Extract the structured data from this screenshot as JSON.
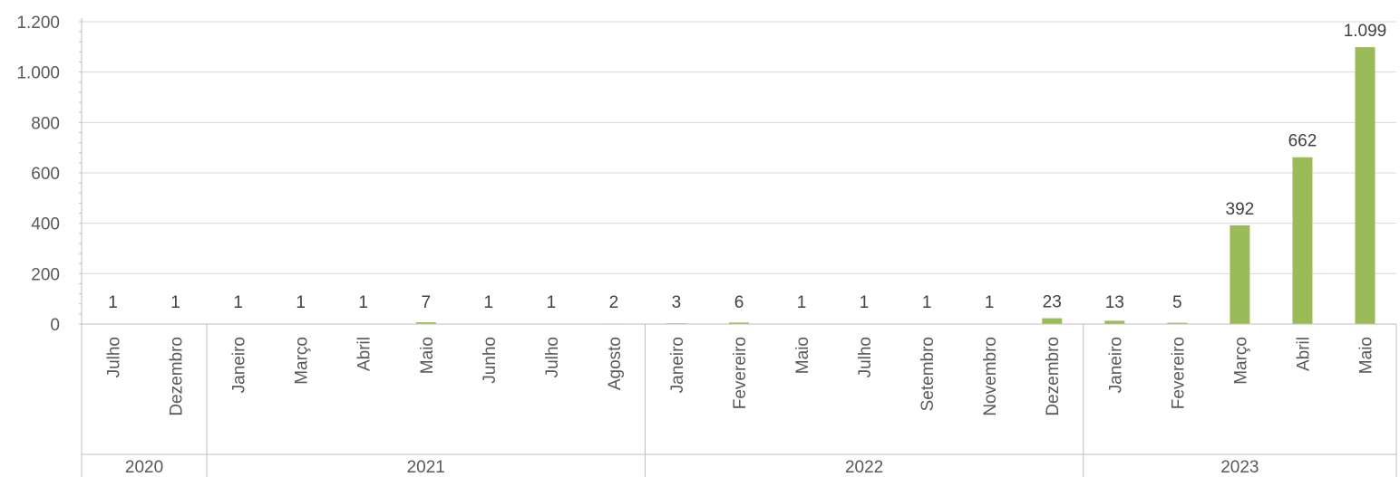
{
  "chart_data": {
    "type": "bar",
    "title": "",
    "xlabel": "",
    "ylabel": "",
    "ylim": [
      0,
      1200
    ],
    "yticks": [
      0,
      200,
      400,
      600,
      800,
      1000,
      1200
    ],
    "ytick_labels": [
      "0",
      "200",
      "400",
      "600",
      "800",
      "1.000",
      "1.200"
    ],
    "grid": "horizontal",
    "legend": "none",
    "bar_color": "#9bbb59",
    "grid_color": "#d9d9d9",
    "categories": [
      {
        "year": "2020",
        "month": "Julho"
      },
      {
        "year": "2020",
        "month": "Dezembro"
      },
      {
        "year": "2021",
        "month": "Janeiro"
      },
      {
        "year": "2021",
        "month": "Março"
      },
      {
        "year": "2021",
        "month": "Abril"
      },
      {
        "year": "2021",
        "month": "Maio"
      },
      {
        "year": "2021",
        "month": "Junho"
      },
      {
        "year": "2021",
        "month": "Julho"
      },
      {
        "year": "2021",
        "month": "Agosto"
      },
      {
        "year": "2022",
        "month": "Janeiro"
      },
      {
        "year": "2022",
        "month": "Fevereiro"
      },
      {
        "year": "2022",
        "month": "Maio"
      },
      {
        "year": "2022",
        "month": "Julho"
      },
      {
        "year": "2022",
        "month": "Setembro"
      },
      {
        "year": "2022",
        "month": "Novembro"
      },
      {
        "year": "2022",
        "month": "Dezembro"
      },
      {
        "year": "2023",
        "month": "Janeiro"
      },
      {
        "year": "2023",
        "month": "Fevereiro"
      },
      {
        "year": "2023",
        "month": "Março"
      },
      {
        "year": "2023",
        "month": "Abril"
      },
      {
        "year": "2023",
        "month": "Maio"
      }
    ],
    "values": [
      1,
      1,
      1,
      1,
      1,
      7,
      1,
      1,
      2,
      3,
      6,
      1,
      1,
      1,
      1,
      23,
      13,
      5,
      392,
      662,
      1099
    ],
    "value_labels": [
      "1",
      "1",
      "1",
      "1",
      "1",
      "7",
      "1",
      "1",
      "2",
      "3",
      "6",
      "1",
      "1",
      "1",
      "1",
      "23",
      "13",
      "5",
      "392",
      "662",
      "1.099"
    ]
  }
}
